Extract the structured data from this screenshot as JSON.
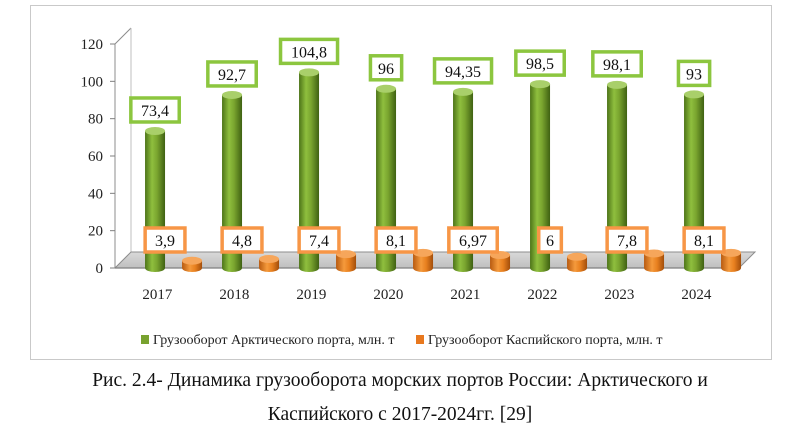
{
  "chart_data": {
    "type": "bar",
    "categories": [
      "2017",
      "2018",
      "2019",
      "2020",
      "2021",
      "2022",
      "2023",
      "2024"
    ],
    "series": [
      {
        "name": "Грузооборот Арктического порта, млн. т",
        "values": [
          73.4,
          92.7,
          104.8,
          96,
          94.35,
          98.5,
          98.1,
          93
        ],
        "labels": [
          "73,4",
          "92,7",
          "104,8",
          "96",
          "94,35",
          "98,5",
          "98,1",
          "93"
        ],
        "color": "#78a22f",
        "label_border": "#8cc63f"
      },
      {
        "name": "Грузооборот Каспийского  порта, млн. т",
        "values": [
          3.9,
          4.8,
          7.4,
          8.1,
          6.97,
          6,
          7.8,
          8.1
        ],
        "labels": [
          "3,9",
          "4,8",
          "7,4",
          "8,1",
          "6,97",
          "6",
          "7,8",
          "8,1"
        ],
        "color": "#e8781e",
        "label_border": "#f79646"
      }
    ],
    "yticks": [
      "0",
      "20",
      "40",
      "60",
      "80",
      "100",
      "120"
    ],
    "ylim": [
      0,
      120
    ],
    "grid": false,
    "legend_position": "bottom",
    "style": "3d-cylinder"
  },
  "caption": {
    "line1": "Рис. 2.4- Динамика грузооборота морских портов России: Арктического и",
    "line2": "Каспийского с 2017-2024гг. [29]"
  }
}
